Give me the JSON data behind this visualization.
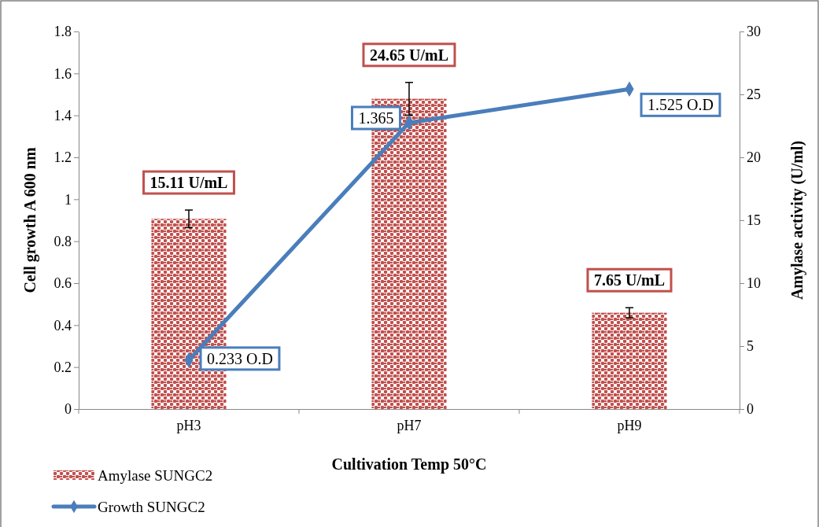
{
  "chart_data": {
    "type": "bar",
    "xlabel": "Cultivation Temp 50°C",
    "ylabel": "Cell growth A 600 nm",
    "y2label": "Amylase activity (U/ml)",
    "categories": [
      "pH3",
      "pH7",
      "pH9"
    ],
    "series": [
      {
        "name": "Amylase SUNGC2",
        "axis": "y2",
        "color": "#c0504d",
        "values": [
          15.11,
          24.65,
          7.65
        ],
        "errors": [
          0.7,
          1.3,
          0.4
        ],
        "value_labels": [
          "15.11 U/mL",
          "24.65 U/mL",
          "7.65 U/mL"
        ]
      },
      {
        "name": "Growth SUNGC2",
        "type": "line",
        "color": "#4a7ebb",
        "values": [
          0.233,
          1.365,
          1.525
        ],
        "value_labels": [
          "0.233 O.D",
          "1.365",
          "1.525 O.D"
        ]
      }
    ],
    "ylim": [
      0,
      1.8
    ],
    "yticks": [
      0,
      0.2,
      0.4,
      0.6,
      0.8,
      1,
      1.2,
      1.4,
      1.6,
      1.8
    ],
    "y2lim": [
      0,
      30
    ],
    "y2ticks": [
      0,
      5,
      10,
      15,
      20,
      25,
      30
    ],
    "grid": false,
    "legend": "bottom left",
    "marker": "diamond",
    "line_style": "solid"
  }
}
